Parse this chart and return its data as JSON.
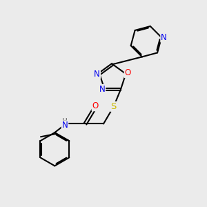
{
  "bg_color": "#ebebeb",
  "bond_color": "#000000",
  "bond_width": 1.5,
  "atom_colors": {
    "N": "#0000ee",
    "O": "#ff0000",
    "S": "#ccbb00",
    "H": "#555555",
    "C": "#000000"
  },
  "font_size": 8.5,
  "fig_size": [
    3.0,
    3.0
  ],
  "dpi": 100
}
